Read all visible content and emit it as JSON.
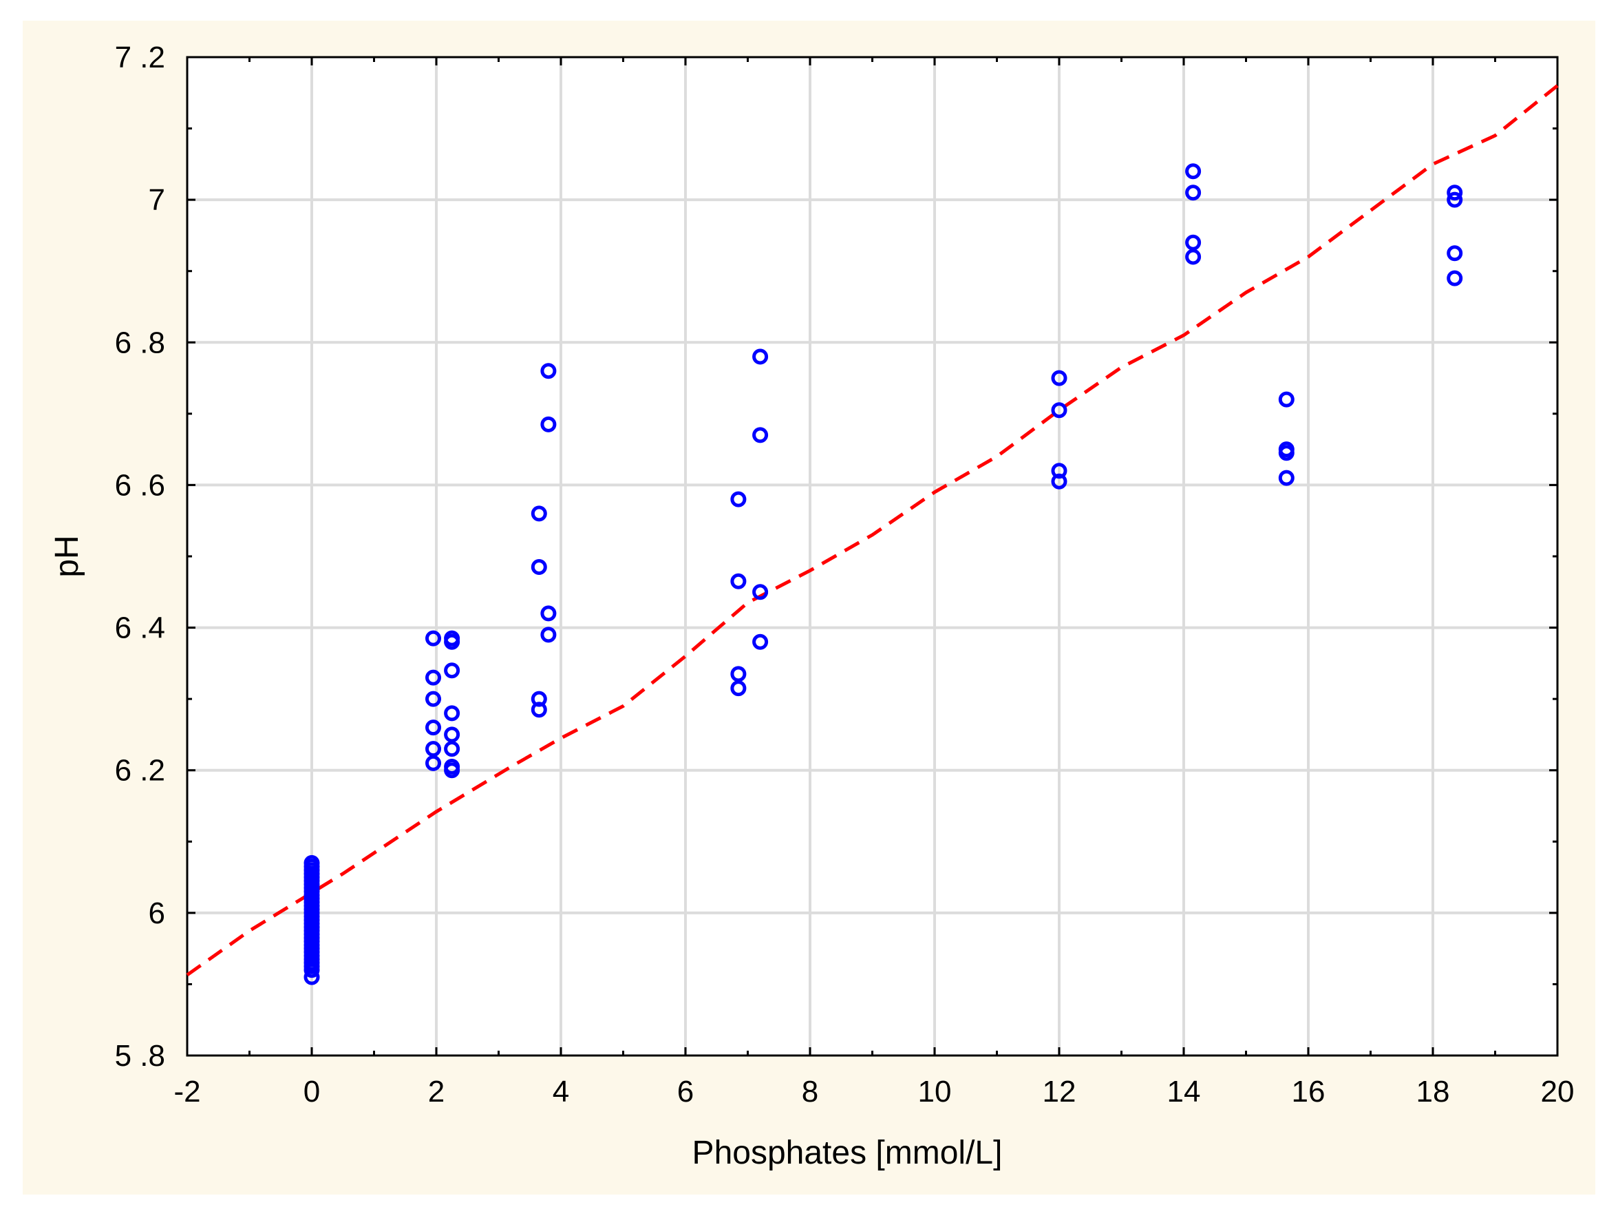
{
  "colors": {
    "panel_background": "#FDF8EA",
    "plot_background": "#FFFFFF",
    "grid": "#DCDCDC",
    "axis": "#000000",
    "points": "#0000FF",
    "fit_line": "#FF0000"
  },
  "chart_data": {
    "type": "scatter",
    "title": "",
    "xlabel": "Phosphates [mmol/L]",
    "ylabel": "pH",
    "xlim": [
      -2,
      20
    ],
    "ylim": [
      5.8,
      7.2
    ],
    "grid": true,
    "legend": "none",
    "x_ticks": [
      -2,
      0,
      2,
      4,
      6,
      8,
      10,
      12,
      14,
      16,
      18,
      20
    ],
    "x_tick_labels": [
      "-2",
      "0",
      "2",
      "4",
      "6",
      "8",
      "10",
      "12",
      "14",
      "16",
      "18",
      "20"
    ],
    "y_ticks": [
      5.8,
      6.0,
      6.2,
      6.4,
      6.6,
      6.8,
      7.0,
      7.2
    ],
    "y_tick_labels": [
      "5 .8",
      "6",
      "6 .2",
      "6 .4",
      "6 .6",
      "6 .8",
      "7",
      "7 .2"
    ],
    "x_minor_step": 1,
    "y_minor_step": 0.1,
    "series": [
      {
        "type": "scatter",
        "marker": "open-circle",
        "color": "#0000FF",
        "points": [
          [
            0,
            6.07
          ],
          [
            0,
            6.065
          ],
          [
            0,
            6.06
          ],
          [
            0,
            6.055
          ],
          [
            0,
            6.05
          ],
          [
            0,
            6.045
          ],
          [
            0,
            6.04
          ],
          [
            0,
            6.035
          ],
          [
            0,
            6.03
          ],
          [
            0,
            6.025
          ],
          [
            0,
            6.02
          ],
          [
            0,
            6.015
          ],
          [
            0,
            6.01
          ],
          [
            0,
            6.005
          ],
          [
            0,
            6.0
          ],
          [
            0,
            5.995
          ],
          [
            0,
            5.99
          ],
          [
            0,
            5.985
          ],
          [
            0,
            5.98
          ],
          [
            0,
            5.975
          ],
          [
            0,
            5.97
          ],
          [
            0,
            5.965
          ],
          [
            0,
            5.96
          ],
          [
            0,
            5.955
          ],
          [
            0,
            5.95
          ],
          [
            0,
            5.945
          ],
          [
            0,
            5.94
          ],
          [
            0,
            5.935
          ],
          [
            0,
            5.93
          ],
          [
            0,
            5.925
          ],
          [
            0,
            5.92
          ],
          [
            0,
            5.91
          ],
          [
            1.95,
            6.385
          ],
          [
            1.95,
            6.33
          ],
          [
            1.95,
            6.3
          ],
          [
            1.95,
            6.26
          ],
          [
            1.95,
            6.23
          ],
          [
            1.95,
            6.21
          ],
          [
            2.25,
            6.385
          ],
          [
            2.25,
            6.38
          ],
          [
            2.25,
            6.34
          ],
          [
            2.25,
            6.28
          ],
          [
            2.25,
            6.25
          ],
          [
            2.25,
            6.23
          ],
          [
            2.25,
            6.205
          ],
          [
            2.25,
            6.2
          ],
          [
            3.65,
            6.56
          ],
          [
            3.65,
            6.485
          ],
          [
            3.65,
            6.3
          ],
          [
            3.65,
            6.285
          ],
          [
            3.8,
            6.76
          ],
          [
            3.8,
            6.685
          ],
          [
            3.8,
            6.42
          ],
          [
            3.8,
            6.39
          ],
          [
            6.85,
            6.58
          ],
          [
            6.85,
            6.465
          ],
          [
            6.85,
            6.335
          ],
          [
            6.85,
            6.315
          ],
          [
            7.2,
            6.78
          ],
          [
            7.2,
            6.67
          ],
          [
            7.2,
            6.45
          ],
          [
            7.2,
            6.38
          ],
          [
            12.0,
            6.75
          ],
          [
            12.0,
            6.705
          ],
          [
            12.0,
            6.62
          ],
          [
            12.0,
            6.605
          ],
          [
            14.15,
            7.04
          ],
          [
            14.15,
            7.01
          ],
          [
            14.15,
            6.94
          ],
          [
            14.15,
            6.92
          ],
          [
            15.65,
            6.72
          ],
          [
            15.65,
            6.65
          ],
          [
            15.65,
            6.645
          ],
          [
            15.65,
            6.61
          ],
          [
            18.35,
            7.01
          ],
          [
            18.35,
            7.0
          ],
          [
            18.35,
            6.925
          ],
          [
            18.35,
            6.89
          ]
        ]
      },
      {
        "type": "line",
        "style": "dashed",
        "color": "#FF0000",
        "points": [
          [
            -2,
            5.913
          ],
          [
            -1,
            5.975
          ],
          [
            0.5,
            6.055
          ],
          [
            2,
            6.142
          ],
          [
            3.2,
            6.205
          ],
          [
            4,
            6.245
          ],
          [
            5,
            6.29
          ],
          [
            6,
            6.36
          ],
          [
            7,
            6.435
          ],
          [
            8,
            6.48
          ],
          [
            9,
            6.53
          ],
          [
            10,
            6.59
          ],
          [
            11,
            6.64
          ],
          [
            12,
            6.705
          ],
          [
            13,
            6.765
          ],
          [
            14,
            6.81
          ],
          [
            15,
            6.87
          ],
          [
            16,
            6.92
          ],
          [
            17,
            6.985
          ],
          [
            18,
            7.05
          ],
          [
            19,
            7.09
          ],
          [
            20,
            7.16
          ]
        ]
      }
    ]
  }
}
